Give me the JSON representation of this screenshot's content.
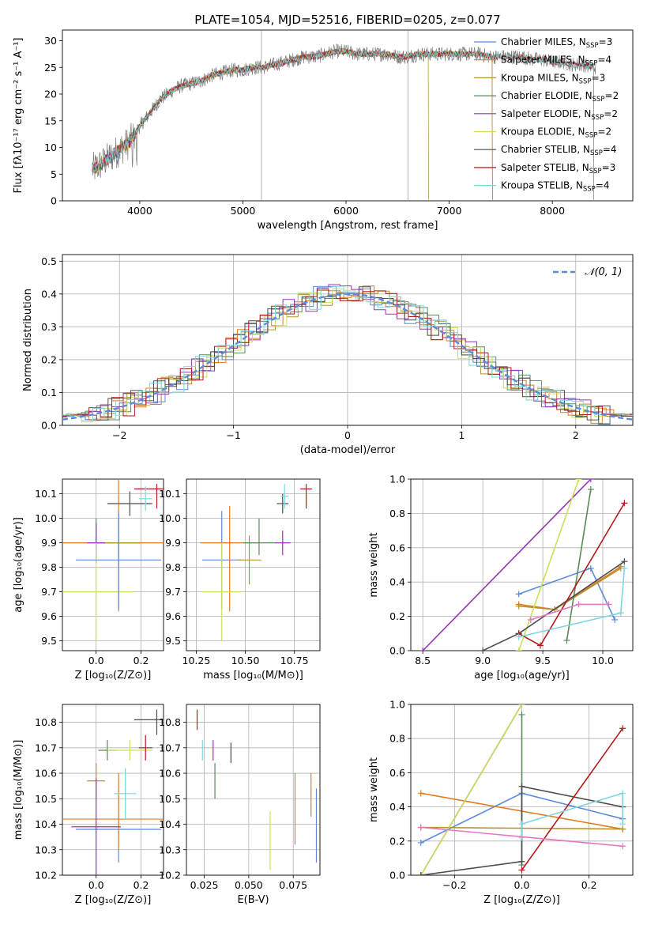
{
  "colors": [
    "#5b8bd9",
    "#e07b26",
    "#b8902a",
    "#5a8a5a",
    "#9535b5",
    "#ccdf5a",
    "#4d4d4d",
    "#b31b1b",
    "#7fd6de"
  ],
  "chart_data": [
    {
      "id": "spectrum",
      "type": "line",
      "title": "PLATE=1054, MJD=52516, FIBERID=0205, z=0.077",
      "xlabel": "wavelength [Angstrom, rest frame]",
      "ylabel": "Flux [fλ10⁻¹⁷ erg cm⁻² s⁻¹ A⁻¹]",
      "xlim": [
        3250,
        8780
      ],
      "ylim": [
        0,
        32
      ],
      "xticks": [
        4000,
        5000,
        6000,
        7000,
        8000
      ],
      "yticks": [
        0,
        5,
        10,
        15,
        20,
        25,
        30
      ],
      "legend_position": "top-right",
      "grid": false,
      "profile": {
        "x": [
          3550,
          3600,
          3700,
          3800,
          3900,
          3950,
          4000,
          4100,
          4200,
          4300,
          4400,
          4500,
          4600,
          4700,
          4800,
          4900,
          5000,
          5100,
          5200,
          5300,
          5400,
          5500,
          5600,
          5700,
          5800,
          5900,
          6000,
          6100,
          6200,
          6300,
          6400,
          6500,
          6600,
          6700,
          6800,
          6900,
          7000,
          7100,
          7200,
          7300,
          7400,
          7500,
          7600,
          7700,
          7800,
          7900,
          8000,
          8100,
          8200,
          8300,
          8400
        ],
        "y": [
          6,
          6.5,
          8,
          9.5,
          11,
          12.5,
          14,
          16.5,
          19,
          20.5,
          21.5,
          22,
          22.5,
          23.5,
          24,
          24.5,
          24.5,
          25,
          25,
          25.5,
          26,
          26.5,
          27,
          27,
          27.5,
          28,
          28,
          27.5,
          27.5,
          27.5,
          27.5,
          27,
          27,
          27.5,
          27.5,
          27.5,
          27.5,
          27.5,
          27.5,
          27.5,
          27,
          27,
          27,
          27,
          26.5,
          26.5,
          26,
          26,
          25.5,
          25.5,
          25
        ]
      },
      "series": [
        {
          "name": "Chabrier MILES, N",
          "sub": "SSP",
          "suffix": "=3",
          "wl_range": [
            3540,
            7420
          ]
        },
        {
          "name": "Salpeter MILES, N",
          "sub": "SSP",
          "suffix": "=4",
          "wl_range": [
            3540,
            7420
          ]
        },
        {
          "name": "Kroupa MILES, N",
          "sub": "SSP",
          "suffix": "=3",
          "wl_range": [
            3540,
            7420
          ]
        },
        {
          "name": "Chabrier ELODIE, N",
          "sub": "SSP",
          "suffix": "=2",
          "wl_range": [
            3540,
            6800
          ]
        },
        {
          "name": "Salpeter ELODIE, N",
          "sub": "SSP",
          "suffix": "=2",
          "wl_range": [
            3540,
            6800
          ]
        },
        {
          "name": "Kroupa ELODIE, N",
          "sub": "SSP",
          "suffix": "=2",
          "wl_range": [
            3540,
            6800
          ]
        },
        {
          "name": "Chabrier STELIB, N",
          "sub": "SSP",
          "suffix": "=4",
          "wl_range": [
            3540,
            8400
          ]
        },
        {
          "name": "Salpeter STELIB, N",
          "sub": "SSP",
          "suffix": "=3",
          "wl_range": [
            3540,
            8400
          ]
        },
        {
          "name": "Kroupa STELIB, N",
          "sub": "SSP",
          "suffix": "=4",
          "wl_range": [
            3540,
            8400
          ]
        }
      ]
    },
    {
      "id": "residuals",
      "type": "histogram",
      "xlabel": "(data-model)/error",
      "ylabel": "Normed distribution",
      "xlim": [
        -2.5,
        2.5
      ],
      "ylim": [
        0,
        0.52
      ],
      "xticks": [
        -2,
        -1,
        0,
        1,
        2
      ],
      "yticks": [
        0.0,
        0.1,
        0.2,
        0.3,
        0.4,
        0.5
      ],
      "grid": true,
      "legend_position": "top-right",
      "reference": {
        "name": "𝒩(0, 1)",
        "sigma": 1.0,
        "peak": 0.4
      }
    },
    {
      "id": "age-vs-Z",
      "type": "errorbar",
      "xlabel": "Z [log₁₀(Z/Z⊙)]",
      "ylabel": "age  [log₁₀(age/yr)]",
      "xlim": [
        -0.15,
        0.3
      ],
      "ylim": [
        9.46,
        10.16
      ],
      "xticks": [
        0.0,
        0.2
      ],
      "yticks": [
        9.5,
        9.6,
        9.7,
        9.8,
        9.9,
        10.0,
        10.1
      ],
      "grid": true,
      "points": [
        {
          "x": 0.1,
          "xerr": [
            0.1,
            0.1
          ],
          "y": 9.9,
          "yerr": [
            0.27,
            0.13
          ]
        },
        {
          "x": 0.1,
          "xerr": [
            0.27,
            0.27
          ],
          "y": 9.9,
          "yerr": [
            0.28,
            0.28
          ]
        },
        {
          "x": 0.1,
          "xerr": [
            0.1,
            0.1
          ],
          "y": 9.9,
          "yerr": [
            0.1,
            0.1
          ]
        },
        {
          "x": 0.0,
          "xerr": [
            0.0,
            0.0
          ],
          "y": 9.9,
          "yerr": [
            0.05,
            0.1
          ]
        },
        {
          "x": 0.0,
          "xerr": [
            0.04,
            0.04
          ],
          "y": 9.9,
          "yerr": [
            0.08,
            0.08
          ]
        },
        {
          "x": 0.0,
          "xerr": [
            0.17,
            0.17
          ],
          "y": 9.7,
          "yerr": [
            0.2,
            0.2
          ]
        },
        {
          "x": 0.15,
          "xerr": [
            0.1,
            0.1
          ],
          "y": 10.06,
          "yerr": [
            0.05,
            0.05
          ]
        },
        {
          "x": 0.27,
          "xerr": [
            0.1,
            0.1
          ],
          "y": 10.12,
          "yerr": [
            0.08,
            0.02
          ]
        },
        {
          "x": 0.22,
          "xerr": [
            0.03,
            0.03
          ],
          "y": 10.08,
          "yerr": [
            0.05,
            0.05
          ]
        },
        {
          "x": 0.1,
          "xerr": [
            0.19,
            0.19
          ],
          "y": 9.83,
          "yerr": [
            0.2,
            0.2
          ]
        }
      ]
    },
    {
      "id": "age-vs-mass",
      "type": "errorbar",
      "xlabel": "mass [log₁₀(M/M⊙)]",
      "ylabel": "",
      "xlim": [
        10.2,
        10.88
      ],
      "ylim": [
        9.46,
        10.16
      ],
      "xticks": [
        10.25,
        10.5,
        10.75
      ],
      "yticks": [
        9.5,
        9.6,
        9.7,
        9.8,
        9.9,
        10.0,
        10.1
      ],
      "grid": true,
      "points": [
        {
          "x": 10.38,
          "xerr": [
            0.1,
            0.1
          ],
          "y": 9.83,
          "yerr": [
            0.2,
            0.2
          ]
        },
        {
          "x": 10.42,
          "xerr": [
            0.15,
            0.15
          ],
          "y": 9.9,
          "yerr": [
            0.28,
            0.15
          ]
        },
        {
          "x": 10.52,
          "xerr": [
            0.06,
            0.06
          ],
          "y": 9.83,
          "yerr": [
            0.1,
            0.1
          ]
        },
        {
          "x": 10.57,
          "xerr": [
            0.08,
            0.08
          ],
          "y": 9.9,
          "yerr": [
            0.05,
            0.1
          ]
        },
        {
          "x": 10.69,
          "xerr": [
            0.04,
            0.04
          ],
          "y": 9.9,
          "yerr": [
            0.05,
            0.05
          ]
        },
        {
          "x": 10.38,
          "xerr": [
            0.1,
            0.1
          ],
          "y": 9.7,
          "yerr": [
            0.2,
            0.2
          ]
        },
        {
          "x": 10.69,
          "xerr": [
            0.03,
            0.03
          ],
          "y": 10.06,
          "yerr": [
            0.04,
            0.04
          ]
        },
        {
          "x": 10.81,
          "xerr": [
            0.03,
            0.03
          ],
          "y": 10.12,
          "yerr": [
            0.08,
            0.02
          ]
        },
        {
          "x": 10.7,
          "xerr": [
            0.02,
            0.02
          ],
          "y": 10.09,
          "yerr": [
            0.05,
            0.05
          ]
        }
      ]
    },
    {
      "id": "weight-vs-age",
      "type": "line",
      "xlabel": "age  [log₁₀(age/yr)]",
      "ylabel": "mass weight",
      "xlim": [
        8.4,
        10.25
      ],
      "ylim": [
        0,
        1
      ],
      "xticks": [
        8.5,
        9.0,
        9.5,
        10.0
      ],
      "yticks": [
        0.0,
        0.2,
        0.4,
        0.6,
        0.8,
        1.0
      ],
      "grid": true,
      "series": [
        {
          "x": [
            9.3,
            9.9,
            10.1
          ],
          "y": [
            0.33,
            0.48,
            0.18
          ]
        },
        {
          "x": [
            9.3,
            9.6,
            10.15
          ],
          "y": [
            0.27,
            0.24,
            0.49
          ]
        },
        {
          "x": [
            9.3,
            9.6,
            10.15
          ],
          "y": [
            0.26,
            0.24,
            0.48
          ]
        },
        {
          "x": [
            9.7,
            9.9
          ],
          "y": [
            0.06,
            0.94
          ]
        },
        {
          "x": [
            8.5,
            9.9
          ],
          "y": [
            0.0,
            1.0
          ]
        },
        {
          "x": [
            9.3,
            9.8
          ],
          "y": [
            0.0,
            1.0
          ]
        },
        {
          "x": [
            9.0,
            9.3,
            10.18
          ],
          "y": [
            0.0,
            0.1,
            0.52
          ]
        },
        {
          "x": [
            9.3,
            9.48,
            10.18
          ],
          "y": [
            0.1,
            0.03,
            0.86
          ]
        },
        {
          "x": [
            9.3,
            10.15,
            10.18
          ],
          "y": [
            0.08,
            0.22,
            0.48
          ]
        },
        {
          "x": [
            9.4,
            9.8,
            10.05
          ],
          "y": [
            0.18,
            0.27,
            0.27
          ]
        }
      ]
    },
    {
      "id": "mass-vs-Z",
      "type": "errorbar",
      "xlabel": "Z [log₁₀(Z/Z⊙)]",
      "ylabel": "mass [log₁₀(M/M⊙)]",
      "xlim": [
        -0.15,
        0.3
      ],
      "ylim": [
        10.2,
        10.87
      ],
      "xticks": [
        0.0,
        0.2
      ],
      "yticks": [
        10.2,
        10.3,
        10.4,
        10.5,
        10.6,
        10.7,
        10.8
      ],
      "grid": true,
      "points": [
        {
          "x": 0.1,
          "xerr": [
            0.19,
            0.19
          ],
          "y": 10.38,
          "yerr": [
            0.13,
            0.13
          ]
        },
        {
          "x": 0.1,
          "xerr": [
            0.27,
            0.27
          ],
          "y": 10.42,
          "yerr": [
            0.12,
            0.18
          ]
        },
        {
          "x": 0.0,
          "xerr": [
            0.04,
            0.04
          ],
          "y": 10.57,
          "yerr": [
            0.07,
            0.07
          ]
        },
        {
          "x": 0.05,
          "xerr": [
            0.04,
            0.04
          ],
          "y": 10.69,
          "yerr": [
            0.04,
            0.04
          ]
        },
        {
          "x": 0.0,
          "xerr": [
            0.11,
            0.11
          ],
          "y": 10.39,
          "yerr": [
            0.19,
            0.19
          ]
        },
        {
          "x": 0.15,
          "xerr": [
            0.1,
            0.1
          ],
          "y": 10.69,
          "yerr": [
            0.04,
            0.04
          ]
        },
        {
          "x": 0.27,
          "xerr": [
            0.1,
            0.1
          ],
          "y": 10.81,
          "yerr": [
            0.06,
            0.04
          ]
        },
        {
          "x": 0.22,
          "xerr": [
            0.03,
            0.03
          ],
          "y": 10.7,
          "yerr": [
            0.05,
            0.05
          ]
        },
        {
          "x": 0.13,
          "xerr": [
            0.05,
            0.05
          ],
          "y": 10.52,
          "yerr": [
            0.1,
            0.1
          ]
        }
      ]
    },
    {
      "id": "mass-vs-ebv",
      "type": "errorbar",
      "xlabel": "E(B-V)",
      "ylabel": "",
      "xlim": [
        0.015,
        0.09
      ],
      "ylim": [
        10.2,
        10.87
      ],
      "xticks": [
        0.025,
        0.05,
        0.075
      ],
      "yticks": [
        10.2,
        10.3,
        10.4,
        10.5,
        10.6,
        10.7,
        10.8
      ],
      "grid": true,
      "points": [
        {
          "x": 0.088,
          "xerr": [
            0.0,
            0.0
          ],
          "y": 10.4,
          "yerr": [
            0.15,
            0.14
          ]
        },
        {
          "x": 0.076,
          "xerr": [
            0.0,
            0.0
          ],
          "y": 10.46,
          "yerr": [
            0.14,
            0.14
          ]
        },
        {
          "x": 0.085,
          "xerr": [
            0.0,
            0.0
          ],
          "y": 10.51,
          "yerr": [
            0.08,
            0.09
          ]
        },
        {
          "x": 0.031,
          "xerr": [
            0.0,
            0.0
          ],
          "y": 10.57,
          "yerr": [
            0.07,
            0.07
          ]
        },
        {
          "x": 0.03,
          "xerr": [
            0.0,
            0.0
          ],
          "y": 10.69,
          "yerr": [
            0.04,
            0.04
          ]
        },
        {
          "x": 0.062,
          "xerr": [
            0.0,
            0.0
          ],
          "y": 10.33,
          "yerr": [
            0.11,
            0.12
          ]
        },
        {
          "x": 0.04,
          "xerr": [
            0.0,
            0.0
          ],
          "y": 10.68,
          "yerr": [
            0.04,
            0.04
          ]
        },
        {
          "x": 0.021,
          "xerr": [
            0.0,
            0.0
          ],
          "y": 10.81,
          "yerr": [
            0.04,
            0.04
          ]
        },
        {
          "x": 0.024,
          "xerr": [
            0.0,
            0.0
          ],
          "y": 10.69,
          "yerr": [
            0.04,
            0.04
          ]
        }
      ]
    },
    {
      "id": "weight-vs-Z",
      "type": "line",
      "xlabel": "Z [log₁₀(Z/Z⊙)]",
      "ylabel": "mass weight",
      "xlim": [
        -0.33,
        0.33
      ],
      "ylim": [
        0,
        1
      ],
      "xticks": [
        -0.2,
        0.0,
        0.2
      ],
      "yticks": [
        0.0,
        0.2,
        0.4,
        0.6,
        0.8,
        1.0
      ],
      "grid": true,
      "series": [
        {
          "x": [
            -0.3,
            0.0,
            0.3
          ],
          "y": [
            0.19,
            0.48,
            0.33
          ]
        },
        {
          "x": [
            -0.3,
            0.3
          ],
          "y": [
            0.48,
            0.27
          ]
        },
        {
          "x": [
            -0.3,
            0.3
          ],
          "y": [
            0.28,
            0.27
          ]
        },
        {
          "x": [
            0.0,
            0.0
          ],
          "y": [
            0.06,
            0.94
          ]
        },
        {
          "x": [
            -0.3,
            0.0
          ],
          "y": [
            0.0,
            1.0
          ]
        },
        {
          "x": [
            -0.3,
            0.0
          ],
          "y": [
            0.0,
            1.0
          ]
        },
        {
          "x": [
            -0.3,
            0.0,
            0.0,
            0.3
          ],
          "y": [
            0.0,
            0.08,
            0.52,
            0.4
          ]
        },
        {
          "x": [
            0.0,
            0.3
          ],
          "y": [
            0.03,
            0.86
          ]
        },
        {
          "x": [
            0.0,
            0.0,
            0.3,
            0.3
          ],
          "y": [
            0.22,
            0.3,
            0.48,
            0.3
          ]
        },
        {
          "x": [
            -0.3,
            0.3
          ],
          "y": [
            0.28,
            0.17
          ]
        }
      ]
    }
  ]
}
